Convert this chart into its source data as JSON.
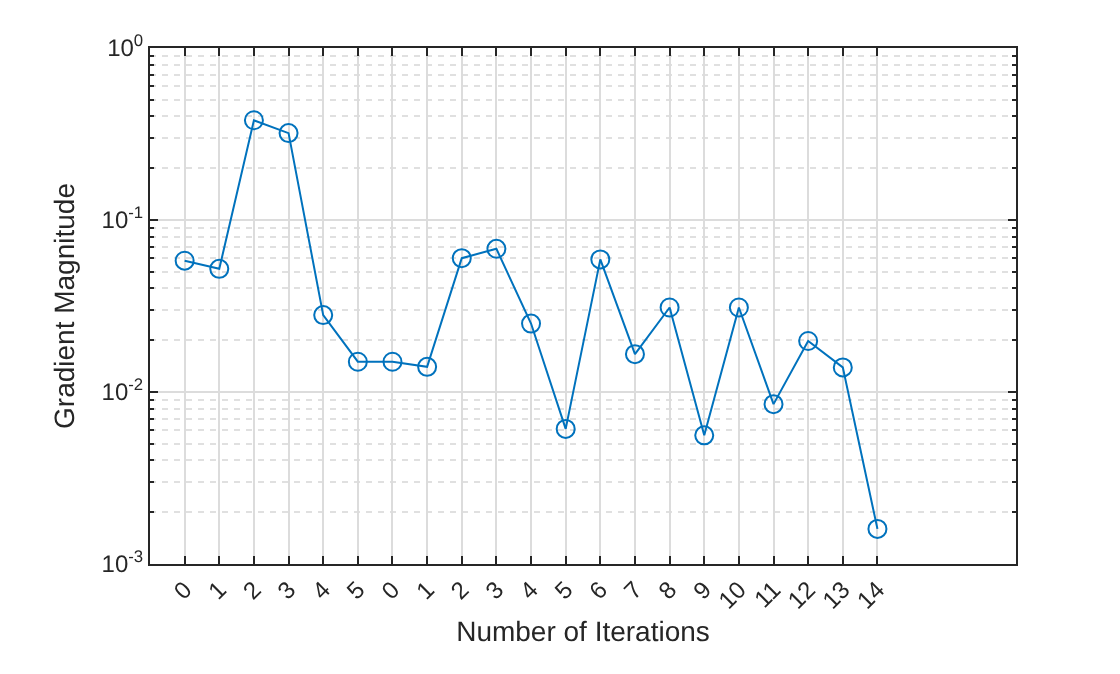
{
  "chart_data": {
    "type": "line",
    "xlabel": "Number of Iterations",
    "ylabel": "Gradient Magnitude",
    "categories": [
      "0",
      "1",
      "2",
      "3",
      "4",
      "5",
      "0",
      "1",
      "2",
      "3",
      "4",
      "5",
      "6",
      "7",
      "8",
      "9",
      "10",
      "11",
      "12",
      "13",
      "14",
      null,
      null,
      null
    ],
    "series": [
      {
        "color": "#0072bd",
        "values": [
          0.058,
          0.052,
          0.38,
          0.32,
          0.028,
          0.015,
          0.015,
          0.014,
          0.06,
          0.068,
          0.025,
          0.0061,
          0.059,
          0.0166,
          0.031,
          0.0056,
          0.031,
          0.0085,
          0.0198,
          0.0139,
          0.0016,
          null,
          null,
          null
        ]
      }
    ],
    "log": true,
    "ylim": [
      0.001,
      1
    ],
    "yticks": [
      {
        "value": 0.001,
        "label": "10$^{-3}$"
      },
      {
        "value": 0.01,
        "label": "10$^{-2}$"
      },
      {
        "value": 0.1,
        "label": "10$^{-1}$"
      },
      {
        "value": 1,
        "label": "10$^{0}$"
      }
    ],
    "grid": true,
    "marker": "circle",
    "line_style": "solid",
    "legend": false
  }
}
